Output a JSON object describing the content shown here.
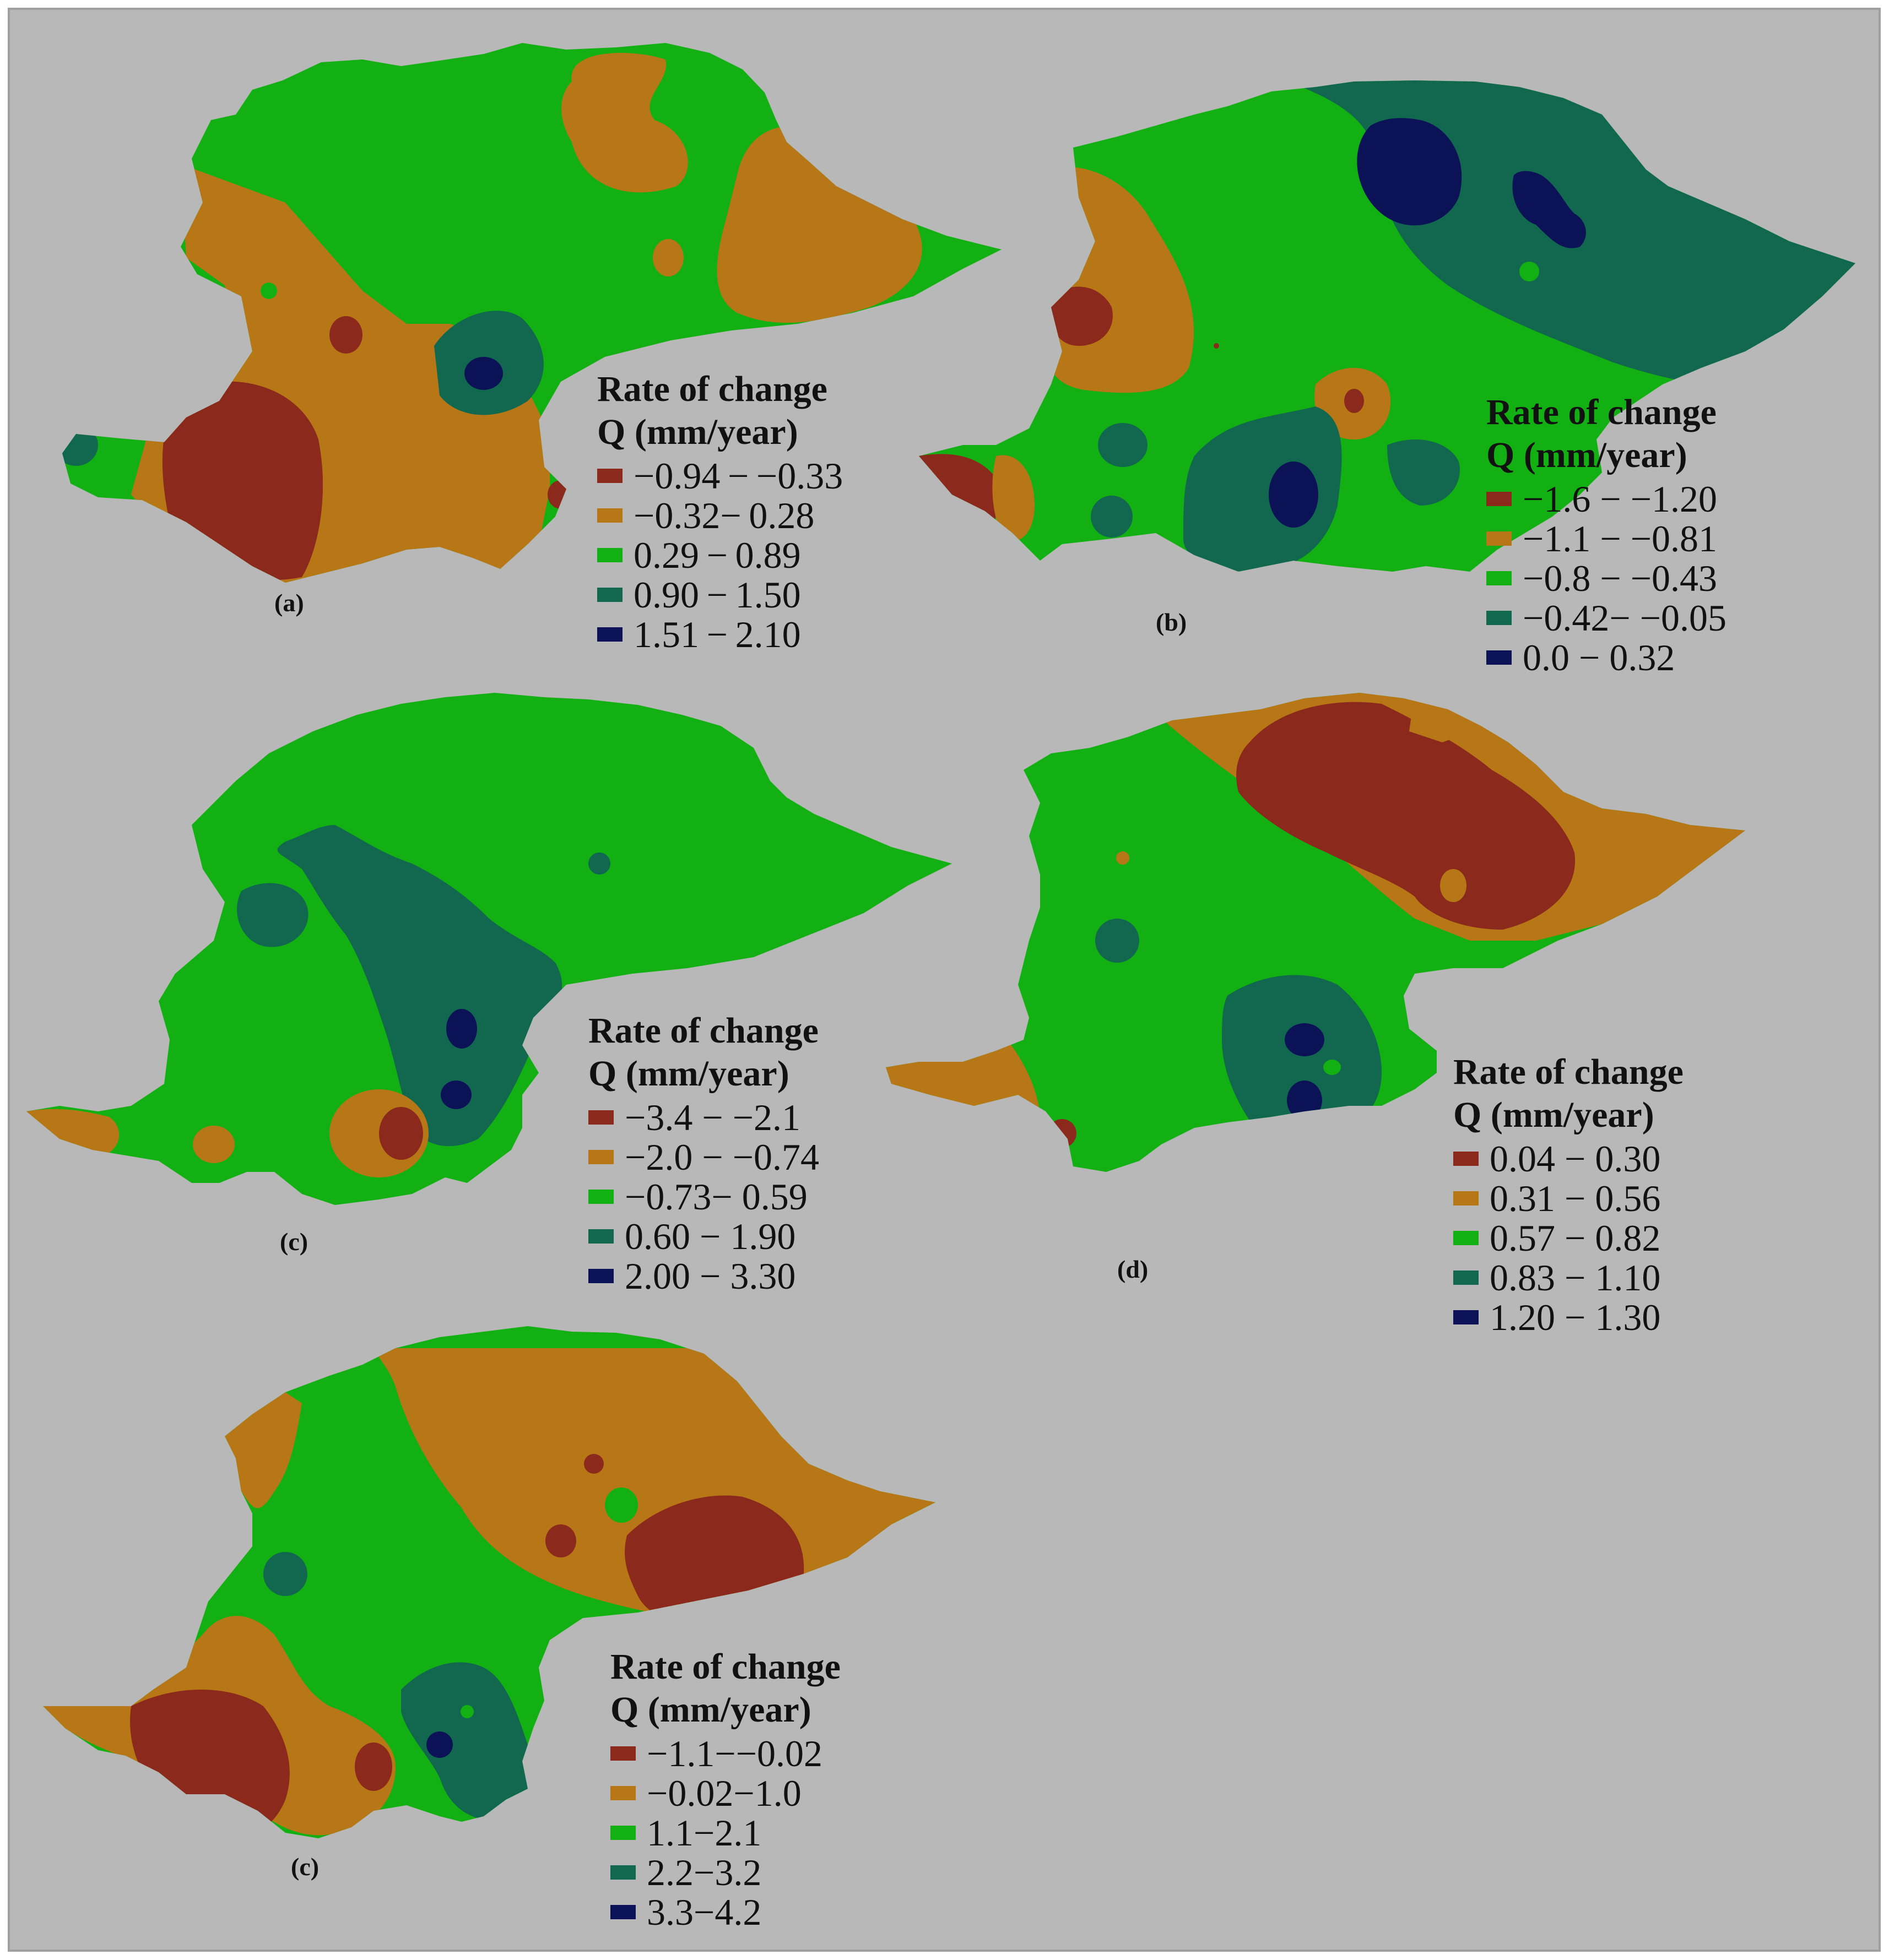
{
  "figure": {
    "panels": [
      {
        "id": "a",
        "label": "(a)",
        "legend_title_1": "Rate of change",
        "legend_title_2": "Q (mm/year)",
        "classes": [
          {
            "label": "−0.94 − −0.33",
            "color": "#8b2a1c"
          },
          {
            "label": "−0.32− 0.28",
            "color": "#b87716"
          },
          {
            "label": "0.29 − 0.89",
            "color": "#12b012"
          },
          {
            "label": "0.90 − 1.50",
            "color": "#11684e"
          },
          {
            "label": "1.51 − 2.10",
            "color": "#0b1356"
          }
        ]
      },
      {
        "id": "b",
        "label": "(b)",
        "legend_title_1": "Rate of change",
        "legend_title_2": "Q (mm/year)",
        "classes": [
          {
            "label": "−1.6  −  −1.20",
            "color": "#8b2a1c"
          },
          {
            "label": "−1.1  − −0.81",
            "color": "#b87716"
          },
          {
            "label": "−0.8  − −0.43",
            "color": "#12b012"
          },
          {
            "label": "−0.42−  −0.05",
            "color": "#11684e"
          },
          {
            "label": "0.0  −  0.32",
            "color": "#0b1356"
          }
        ]
      },
      {
        "id": "c",
        "label": "(c)",
        "legend_title_1": "Rate of change",
        "legend_title_2": "Q (mm/year)",
        "classes": [
          {
            "label": "−3.4 − −2.1",
            "color": "#8b2a1c"
          },
          {
            "label": "−2.0 − −0.74",
            "color": "#b87716"
          },
          {
            "label": "−0.73− 0.59",
            "color": "#12b012"
          },
          {
            "label": "0.60 − 1.90",
            "color": "#11684e"
          },
          {
            "label": "2.00 − 3.30",
            "color": "#0b1356"
          }
        ]
      },
      {
        "id": "d",
        "label": "(d)",
        "legend_title_1": "Rate of change",
        "legend_title_2": "Q (mm/year)",
        "classes": [
          {
            "label": "0.04 − 0.30",
            "color": "#8b2a1c"
          },
          {
            "label": "0.31 − 0.56",
            "color": "#b87716"
          },
          {
            "label": "0.57 − 0.82",
            "color": "#12b012"
          },
          {
            "label": "0.83 − 1.10",
            "color": "#11684e"
          },
          {
            "label": "1.20 − 1.30",
            "color": "#0b1356"
          }
        ]
      },
      {
        "id": "e",
        "label": "(c)",
        "legend_title_1": "Rate of change",
        "legend_title_2": "Q (mm/year)",
        "classes": [
          {
            "label": "−1.1−−0.02",
            "color": "#8b2a1c"
          },
          {
            "label": "−0.02−1.0",
            "color": "#b87716"
          },
          {
            "label": "1.1−2.1",
            "color": "#12b012"
          },
          {
            "label": "2.2−3.2",
            "color": "#11684e"
          },
          {
            "label": "3.3−4.2",
            "color": "#0b1356"
          }
        ]
      }
    ]
  }
}
